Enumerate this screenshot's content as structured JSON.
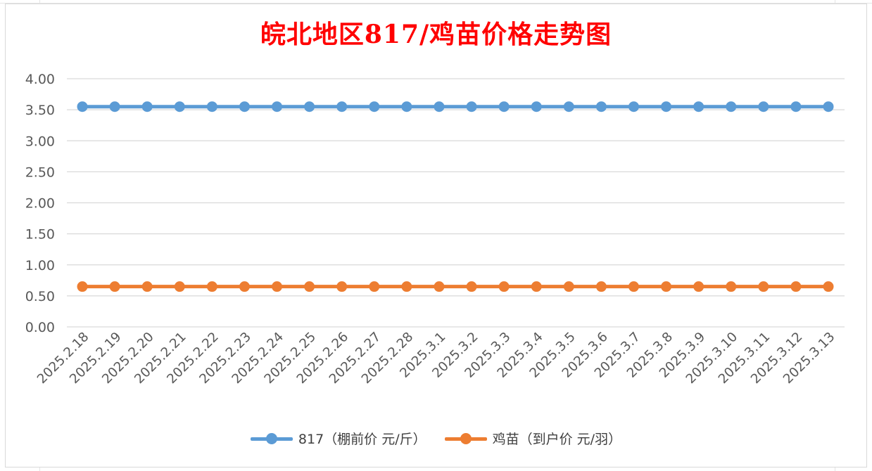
{
  "chart_data": {
    "type": "line",
    "title": "皖北地区817/鸡苗价格走势图",
    "xlabel": "",
    "ylabel": "",
    "categories": [
      "2025.2.18",
      "2025.2.19",
      "2025.2.20",
      "2025.2.21",
      "2025.2.22",
      "2025.2.23",
      "2025.2.24",
      "2025.2.25",
      "2025.2.26",
      "2025.2.27",
      "2025.2.28",
      "2025.3.1",
      "2025.3.2",
      "2025.3.3",
      "2025.3.4",
      "2025.3.5",
      "2025.3.6",
      "2025.3.7",
      "2025.3.8",
      "2025.3.9",
      "2025.3.10",
      "2025.3.11",
      "2025.3.12",
      "2025.3.13"
    ],
    "yticks": [
      "0.00",
      "0.50",
      "1.00",
      "1.50",
      "2.00",
      "2.50",
      "3.00",
      "3.50",
      "4.00"
    ],
    "ylim": [
      0,
      4
    ],
    "grid": true,
    "legend_position": "bottom",
    "series": [
      {
        "name": "817（棚前价 元/斤）",
        "color": "#5b9bd5",
        "values": [
          3.55,
          3.55,
          3.55,
          3.55,
          3.55,
          3.55,
          3.55,
          3.55,
          3.55,
          3.55,
          3.55,
          3.55,
          3.55,
          3.55,
          3.55,
          3.55,
          3.55,
          3.55,
          3.55,
          3.55,
          3.55,
          3.55,
          3.55,
          3.55
        ]
      },
      {
        "name": "鸡苗（到户价 元/羽）",
        "color": "#ed7d31",
        "values": [
          0.65,
          0.65,
          0.65,
          0.65,
          0.65,
          0.65,
          0.65,
          0.65,
          0.65,
          0.65,
          0.65,
          0.65,
          0.65,
          0.65,
          0.65,
          0.65,
          0.65,
          0.65,
          0.65,
          0.65,
          0.65,
          0.65,
          0.65,
          0.65
        ]
      }
    ]
  }
}
